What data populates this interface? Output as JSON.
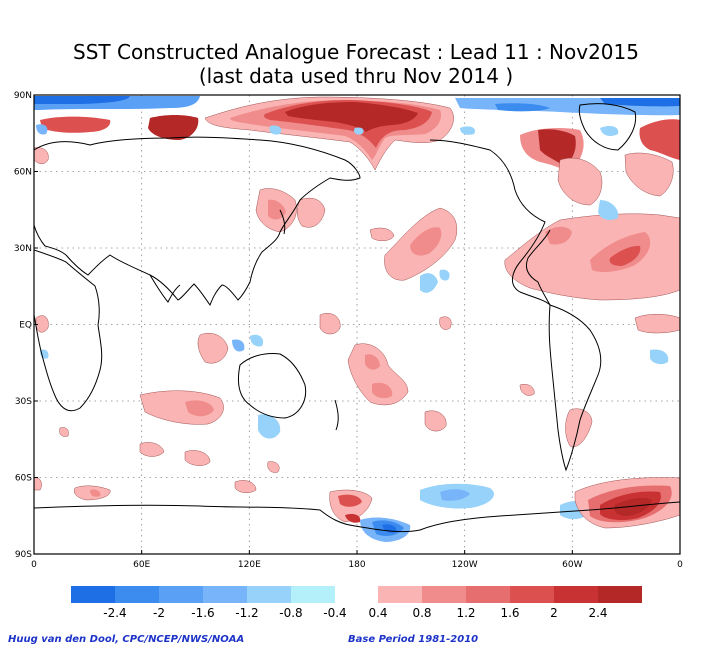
{
  "title_line1": "SST Constructed Analogue Forecast : Lead 11 : Nov2015",
  "title_line2": "(last data used thru Nov 2014 )",
  "lat_labels": [
    "90N",
    "60N",
    "30N",
    "EQ",
    "30S",
    "60S",
    "90S"
  ],
  "lon_labels": [
    "0",
    "60E",
    "120E",
    "180",
    "120W",
    "60W",
    "0"
  ],
  "legend": {
    "neg_colors": [
      "#1e6ee6",
      "#3c8cf0",
      "#5aa0f5",
      "#78b4fa",
      "#96d2fa",
      "#b4f0fa"
    ],
    "pos_colors": [
      "#fab4b4",
      "#f08c8c",
      "#e66e6e",
      "#dc5050",
      "#c83232",
      "#b42828"
    ],
    "neg_labels": [
      "-2.4",
      "-2",
      "-1.6",
      "-1.2",
      "-0.8",
      "-0.4"
    ],
    "pos_labels": [
      "0.4",
      "0.8",
      "1.2",
      "1.6",
      "2",
      "2.4"
    ]
  },
  "footer_left": "Huug van den Dool, CPC/NCEP/NWS/NOAA",
  "footer_right": "Base Period 1981-2010"
}
